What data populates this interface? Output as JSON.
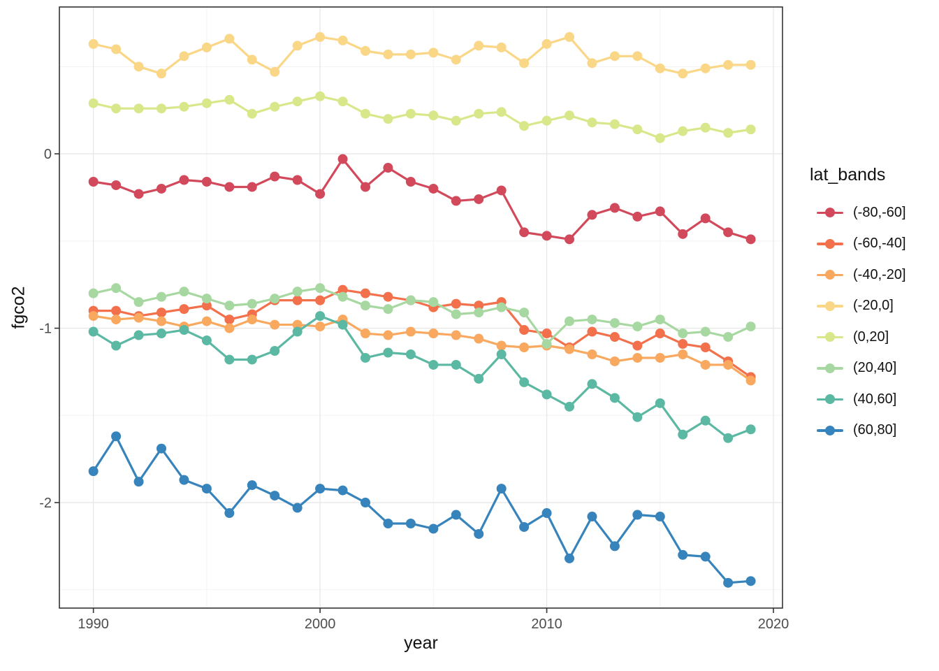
{
  "legend": {
    "title": "lat_bands"
  },
  "chart_data": {
    "type": "line",
    "title": "",
    "xlabel": "year",
    "ylabel": "fgco2",
    "xlim": [
      1988.5,
      2020.4
    ],
    "ylim": [
      -2.605,
      0.842
    ],
    "grid": true,
    "legend_position": "right",
    "x_ticks": [
      1990,
      2000,
      2010,
      2020
    ],
    "x_tick_labels": [
      "1990",
      "2000",
      "2010",
      "2020"
    ],
    "x_minor_ticks": [
      1995,
      2005,
      2015
    ],
    "y_ticks": [
      0,
      -1,
      -2
    ],
    "y_tick_labels": [
      "0",
      "-1",
      "-2"
    ],
    "y_minor_ticks": [
      0.5,
      -0.5,
      -1.5,
      -2.5
    ],
    "x": [
      1990,
      1991,
      1992,
      1993,
      1994,
      1995,
      1996,
      1997,
      1998,
      1999,
      2000,
      2001,
      2002,
      2003,
      2004,
      2005,
      2006,
      2007,
      2008,
      2009,
      2010,
      2011,
      2012,
      2013,
      2014,
      2015,
      2016,
      2017,
      2018,
      2019
    ],
    "series": [
      {
        "name": "(-80,-60]",
        "color": "#D1495B",
        "values": [
          -0.16,
          -0.18,
          -0.23,
          -0.2,
          -0.15,
          -0.16,
          -0.19,
          -0.19,
          -0.13,
          -0.15,
          -0.23,
          -0.03,
          -0.19,
          -0.08,
          -0.16,
          -0.2,
          -0.27,
          -0.26,
          -0.21,
          -0.45,
          -0.47,
          -0.49,
          -0.35,
          -0.31,
          -0.36,
          -0.33,
          -0.46,
          -0.37,
          -0.45,
          -0.49
        ]
      },
      {
        "name": "(-60,-40]",
        "color": "#F2704B",
        "values": [
          -0.9,
          -0.9,
          -0.93,
          -0.91,
          -0.89,
          -0.87,
          -0.95,
          -0.92,
          -0.84,
          -0.84,
          -0.84,
          -0.78,
          -0.8,
          -0.82,
          -0.84,
          -0.88,
          -0.86,
          -0.87,
          -0.85,
          -1.01,
          -1.03,
          -1.11,
          -1.02,
          -1.05,
          -1.1,
          -1.03,
          -1.09,
          -1.11,
          -1.19,
          -1.28
        ]
      },
      {
        "name": "(-40,-20]",
        "color": "#F9A85F",
        "values": [
          -0.93,
          -0.95,
          -0.94,
          -0.96,
          -0.99,
          -0.96,
          -1.0,
          -0.95,
          -0.98,
          -0.98,
          -0.99,
          -0.95,
          -1.03,
          -1.04,
          -1.02,
          -1.03,
          -1.04,
          -1.06,
          -1.1,
          -1.11,
          -1.1,
          -1.12,
          -1.15,
          -1.19,
          -1.17,
          -1.17,
          -1.15,
          -1.21,
          -1.21,
          -1.3
        ]
      },
      {
        "name": "(-20,0]",
        "color": "#FAD687",
        "values": [
          0.63,
          0.6,
          0.5,
          0.46,
          0.56,
          0.61,
          0.66,
          0.54,
          0.47,
          0.62,
          0.67,
          0.65,
          0.59,
          0.57,
          0.57,
          0.58,
          0.54,
          0.62,
          0.61,
          0.52,
          0.63,
          0.67,
          0.52,
          0.56,
          0.56,
          0.49,
          0.46,
          0.49,
          0.51,
          0.51
        ]
      },
      {
        "name": "(0,20]",
        "color": "#D9E78B",
        "values": [
          0.29,
          0.26,
          0.26,
          0.26,
          0.27,
          0.29,
          0.31,
          0.23,
          0.27,
          0.3,
          0.33,
          0.3,
          0.23,
          0.2,
          0.23,
          0.22,
          0.19,
          0.23,
          0.24,
          0.16,
          0.19,
          0.22,
          0.18,
          0.17,
          0.14,
          0.09,
          0.13,
          0.15,
          0.12,
          0.14
        ]
      },
      {
        "name": "(20,40]",
        "color": "#A8D8A2",
        "values": [
          -0.8,
          -0.77,
          -0.85,
          -0.82,
          -0.79,
          -0.83,
          -0.87,
          -0.86,
          -0.83,
          -0.79,
          -0.77,
          -0.82,
          -0.87,
          -0.89,
          -0.84,
          -0.85,
          -0.92,
          -0.91,
          -0.88,
          -0.91,
          -1.09,
          -0.96,
          -0.95,
          -0.97,
          -0.99,
          -0.95,
          -1.03,
          -1.02,
          -1.05,
          -0.99
        ]
      },
      {
        "name": "(40,60]",
        "color": "#5BB8A2",
        "values": [
          -1.02,
          -1.1,
          -1.04,
          -1.03,
          -1.01,
          -1.07,
          -1.18,
          -1.18,
          -1.13,
          -1.02,
          -0.93,
          -0.98,
          -1.17,
          -1.14,
          -1.15,
          -1.21,
          -1.21,
          -1.29,
          -1.15,
          -1.31,
          -1.38,
          -1.45,
          -1.32,
          -1.4,
          -1.51,
          -1.43,
          -1.61,
          -1.53,
          -1.63,
          -1.58
        ]
      },
      {
        "name": "(60,80]",
        "color": "#3783BB",
        "values": [
          -1.82,
          -1.62,
          -1.88,
          -1.69,
          -1.87,
          -1.92,
          -2.06,
          -1.9,
          -1.96,
          -2.03,
          -1.92,
          -1.93,
          -2.0,
          -2.12,
          -2.12,
          -2.15,
          -2.07,
          -2.18,
          -1.92,
          -2.14,
          -2.06,
          -2.32,
          -2.08,
          -2.25,
          -2.07,
          -2.08,
          -2.3,
          -2.31,
          -2.46,
          -2.45
        ]
      }
    ],
    "style": {
      "grid_major": "#E7E7E7",
      "grid_minor": "#F3F3F3",
      "panel_border": "#333333",
      "tick_color": "#333333",
      "tick_label_color": "#4D4D4D",
      "point_radius": 7,
      "line_width": 3.2
    }
  }
}
